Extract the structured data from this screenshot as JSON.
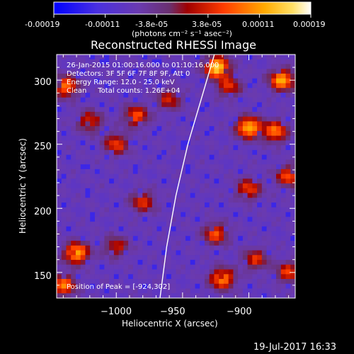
{
  "chart_data": {
    "type": "heatmap",
    "title": "Reconstructed RHESSI Image",
    "xlabel": "Heliocentric X (arcsec)",
    "ylabel": "Heliocentric Y (arcsec)",
    "xlim": [
      -1045,
      -865
    ],
    "ylim": [
      130,
      320
    ],
    "x_ticks": [
      -1000,
      -950,
      -900
    ],
    "x_tick_labels": [
      "−1000",
      "−950",
      "−900"
    ],
    "y_ticks": [
      150,
      200,
      250,
      300
    ],
    "y_tick_labels": [
      "150",
      "200",
      "250",
      "300"
    ],
    "colorbar": {
      "range": [
        -0.00019,
        0.00019
      ],
      "tick_labels": [
        "-0.00019",
        "-0.00011",
        "-3.8e-05",
        "3.8e-05",
        "0.00011",
        "0.00019"
      ],
      "unit_label": "(photons cm⁻² s⁻¹ asec⁻²)",
      "colors": [
        "#0000ff",
        "#5a2dd2",
        "#6e3ca8",
        "#a00000",
        "#ff5a00",
        "#ffb400",
        "#ffffff"
      ]
    },
    "annotations": [
      "26-Jan-2015 01:00:16.000 to 01:10:16.000",
      "Detectors: 3F 5F 6F 7F 8F 9F, Att 0",
      "Energy Range: 12.0 - 25.0 keV",
      "Clean     Total counts: 1.26E+04"
    ],
    "peak_label": "Position of Peak = [-924,302]",
    "peak_position": [
      -924,
      302
    ],
    "limb_curve": [
      [
        -967,
        130
      ],
      [
        -962,
        170
      ],
      [
        -955,
        210
      ],
      [
        -946,
        250
      ],
      [
        -936,
        285
      ],
      [
        -926,
        320
      ]
    ],
    "hotspots": [
      {
        "x": -900,
        "y": 263,
        "v": 0.9
      },
      {
        "x": -985,
        "y": 272,
        "v": 0.6
      },
      {
        "x": -1020,
        "y": 268,
        "v": 0.5
      },
      {
        "x": -1038,
        "y": 295,
        "v": 0.7
      },
      {
        "x": -1030,
        "y": 165,
        "v": 0.85
      },
      {
        "x": -1040,
        "y": 140,
        "v": 0.7
      },
      {
        "x": -980,
        "y": 205,
        "v": 0.5
      },
      {
        "x": -925,
        "y": 180,
        "v": 0.6
      },
      {
        "x": -900,
        "y": 215,
        "v": 0.55
      },
      {
        "x": -870,
        "y": 225,
        "v": 0.6
      },
      {
        "x": -880,
        "y": 260,
        "v": 0.7
      },
      {
        "x": -875,
        "y": 300,
        "v": 0.85
      },
      {
        "x": -915,
        "y": 295,
        "v": 0.5
      },
      {
        "x": -924,
        "y": 310,
        "v": 1.0
      },
      {
        "x": -920,
        "y": 145,
        "v": 0.75
      },
      {
        "x": -895,
        "y": 160,
        "v": 0.5
      },
      {
        "x": -870,
        "y": 150,
        "v": 0.55
      },
      {
        "x": -1000,
        "y": 250,
        "v": 0.55
      },
      {
        "x": -960,
        "y": 285,
        "v": 0.45
      },
      {
        "x": -1000,
        "y": 170,
        "v": 0.45
      }
    ]
  },
  "footer": {
    "date_stamp": "19-Jul-2017 16:33"
  }
}
